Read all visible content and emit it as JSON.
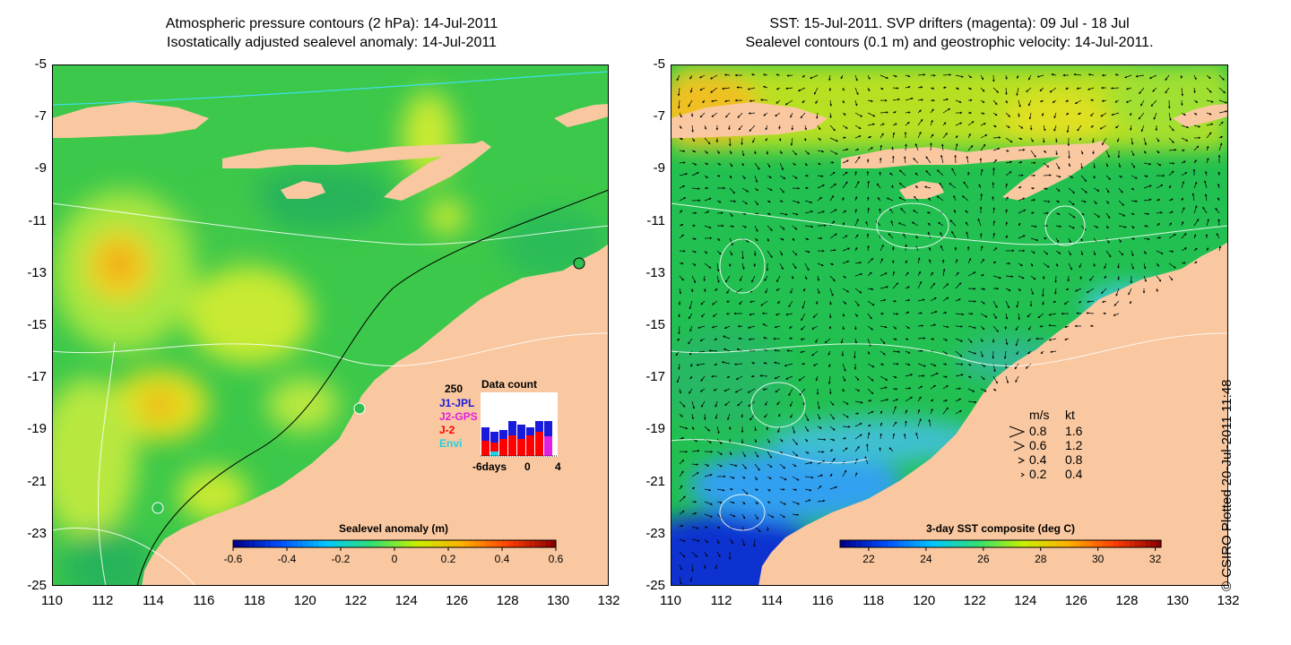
{
  "left_panel": {
    "title_line1": "Atmospheric pressure contours (2 hPa): 14-Jul-2011",
    "title_line2": "Isostatically adjusted sealevel anomaly: 14-Jul-2011",
    "colorbar": {
      "title": "Sealevel anomaly (m)",
      "ticks": [
        "-0.6",
        "-0.4",
        "-0.2",
        "0",
        "0.2",
        "0.4",
        "0.6"
      ],
      "range": [
        -0.6,
        0.6
      ],
      "colormap": [
        "#00008f",
        "#0050ff",
        "#00c8ff",
        "#30e070",
        "#c8f000",
        "#ffb000",
        "#ff4000",
        "#8f0000"
      ]
    },
    "data_count_legend": {
      "title": "Data count",
      "max_label": "250",
      "sources": [
        {
          "name": "J1-JPL",
          "color": "#1a1adc"
        },
        {
          "name": "J2-GPS",
          "color": "#e020e0"
        },
        {
          "name": "J-2",
          "color": "#ff0000"
        },
        {
          "name": "Envi",
          "color": "#20d0e0"
        }
      ],
      "x_label_left": "-6days",
      "x_label_mid": "0",
      "x_label_right": "4"
    }
  },
  "right_panel": {
    "title_line1": "SST: 15-Jul-2011. SVP drifters (magenta): 09 Jul - 18 Jul",
    "title_line2": "Sealevel contours (0.1 m) and geostrophic velocity: 14-Jul-2011.",
    "colorbar": {
      "title": "3-day SST composite (deg C)",
      "ticks": [
        "22",
        "24",
        "26",
        "28",
        "30",
        "32"
      ],
      "range": [
        21,
        32.2
      ],
      "colormap": [
        "#00008f",
        "#0050ff",
        "#00c8ff",
        "#30e070",
        "#c8f000",
        "#ffb000",
        "#ff4000",
        "#8f0000"
      ]
    },
    "velocity_legend": {
      "header_ms": "m/s",
      "header_kt": "kt",
      "rows": [
        {
          "ms": "0.8",
          "kt": "1.6"
        },
        {
          "ms": "0.6",
          "kt": "1.2"
        },
        {
          "ms": "0.4",
          "kt": "0.8"
        },
        {
          "ms": "0.2",
          "kt": "0.4"
        }
      ]
    }
  },
  "axes": {
    "y_ticks": [
      "-5",
      "-7",
      "-9",
      "-11",
      "-13",
      "-15",
      "-17",
      "-19",
      "-21",
      "-23",
      "-25"
    ],
    "x_ticks": [
      "110",
      "112",
      "114",
      "116",
      "118",
      "120",
      "122",
      "124",
      "126",
      "128",
      "130",
      "132"
    ],
    "lat_range": [
      -25,
      -5
    ],
    "lon_range": [
      110,
      132
    ]
  },
  "footer": {
    "credit": "© CSIRO Plotted 20-Jul-2011 11:48"
  },
  "colors": {
    "land": "#fac8a0",
    "sea_green": "#3cc84a",
    "sst_base": "#21c050"
  }
}
